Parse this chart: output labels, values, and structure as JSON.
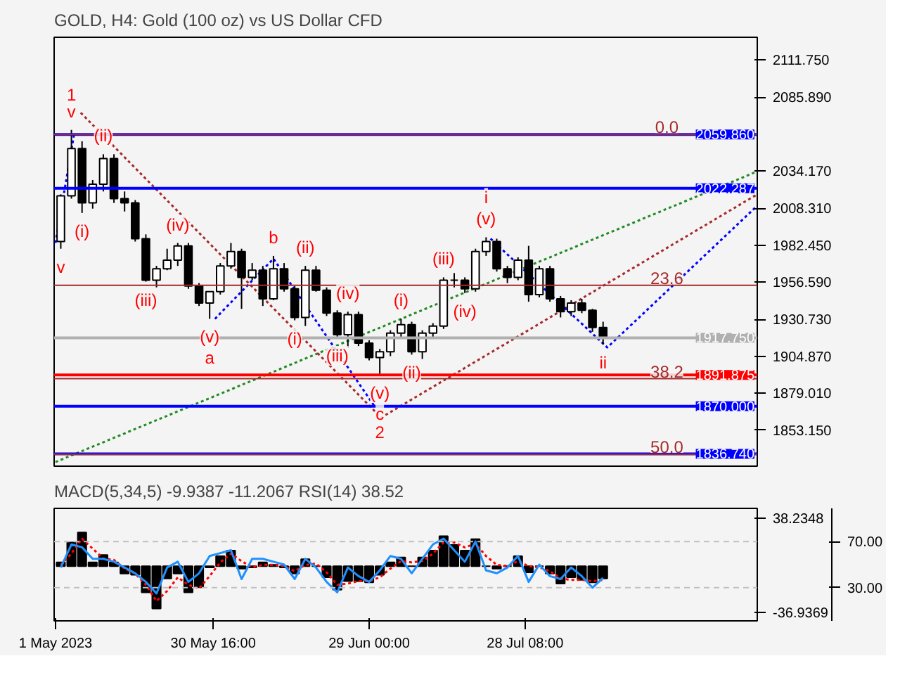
{
  "chart_data": [
    {
      "type": "candlestick",
      "title": "GOLD, H4:  Gold (100 oz) vs US Dollar CFD",
      "color": "#000000",
      "x": [
        "2023-05-02",
        "2023-05-04",
        "2023-05-06",
        "2023-05-08",
        "2023-05-10",
        "2023-05-12",
        "2023-05-14",
        "2023-05-16",
        "2023-05-18",
        "2023-05-20",
        "2023-05-22",
        "2023-05-24",
        "2023-05-26",
        "2023-05-28",
        "2023-05-30",
        "2023-06-01",
        "2023-06-03",
        "2023-06-05",
        "2023-06-07",
        "2023-06-09",
        "2023-06-11",
        "2023-06-13",
        "2023-06-15",
        "2023-06-17",
        "2023-06-19",
        "2023-06-21",
        "2023-06-23",
        "2023-06-25",
        "2023-06-27",
        "2023-06-29",
        "2023-07-01",
        "2023-07-03",
        "2023-07-05",
        "2023-07-07",
        "2023-07-09",
        "2023-07-11",
        "2023-07-13",
        "2023-07-15",
        "2023-07-17",
        "2023-07-19",
        "2023-07-21",
        "2023-07-23",
        "2023-07-25",
        "2023-07-27",
        "2023-07-29",
        "2023-07-31",
        "2023-08-02",
        "2023-08-04",
        "2023-08-06",
        "2023-08-08",
        "2023-08-10",
        "2023-08-12"
      ],
      "ohlc": [
        [
          1985,
          2018,
          1980,
          2017
        ],
        [
          2017,
          2063,
          2015,
          2050
        ],
        [
          2050,
          2055,
          2005,
          2012
        ],
        [
          2012,
          2028,
          2008,
          2025
        ],
        [
          2025,
          2046,
          2020,
          2043
        ],
        [
          2043,
          2046,
          2012,
          2015
        ],
        [
          2015,
          2020,
          2006,
          2012
        ],
        [
          2012,
          2014,
          1985,
          1987
        ],
        [
          1987,
          1990,
          1957,
          1958
        ],
        [
          1958,
          1968,
          1953,
          1966
        ],
        [
          1966,
          1980,
          1965,
          1972
        ],
        [
          1972,
          1984,
          1968,
          1982
        ],
        [
          1982,
          1984,
          1952,
          1954
        ],
        [
          1954,
          1956,
          1940,
          1942
        ],
        [
          1942,
          1950,
          1931,
          1950
        ],
        [
          1950,
          1970,
          1948,
          1968
        ],
        [
          1968,
          1984,
          1966,
          1978
        ],
        [
          1978,
          1980,
          1938,
          1960
        ],
        [
          1960,
          1970,
          1958,
          1965
        ],
        [
          1965,
          1968,
          1940,
          1945
        ],
        [
          1945,
          1975,
          1944,
          1966
        ],
        [
          1966,
          1970,
          1950,
          1952
        ],
        [
          1952,
          1954,
          1930,
          1932
        ],
        [
          1932,
          1968,
          1926,
          1965
        ],
        [
          1965,
          1968,
          1950,
          1951
        ],
        [
          1951,
          1953,
          1933,
          1935
        ],
        [
          1935,
          1937,
          1918,
          1920
        ],
        [
          1920,
          1936,
          1911,
          1934
        ],
        [
          1934,
          1936,
          1912,
          1914
        ],
        [
          1914,
          1916,
          1902,
          1904
        ],
        [
          1904,
          1910,
          1892,
          1908
        ],
        [
          1908,
          1923,
          1905,
          1921
        ],
        [
          1921,
          1931,
          1918,
          1927
        ],
        [
          1927,
          1929,
          1906,
          1908
        ],
        [
          1908,
          1923,
          1903,
          1921
        ],
        [
          1921,
          1928,
          1918,
          1926
        ],
        [
          1926,
          1960,
          1924,
          1958
        ],
        [
          1958,
          1963,
          1953,
          1958
        ],
        [
          1958,
          1960,
          1949,
          1952
        ],
        [
          1952,
          1980,
          1950,
          1978
        ],
        [
          1978,
          1988,
          1975,
          1985
        ],
        [
          1985,
          1987,
          1964,
          1966
        ],
        [
          1966,
          1968,
          1956,
          1960
        ],
        [
          1960,
          1974,
          1958,
          1972
        ],
        [
          1972,
          1982,
          1943,
          1948
        ],
        [
          1948,
          1968,
          1946,
          1966
        ],
        [
          1966,
          1968,
          1943,
          1945
        ],
        [
          1945,
          1947,
          1932,
          1936
        ],
        [
          1936,
          1944,
          1933,
          1942
        ],
        [
          1942,
          1945,
          1935,
          1937
        ],
        [
          1937,
          1938,
          1922,
          1925
        ],
        [
          1925,
          1929,
          1913,
          1917.75
        ]
      ],
      "series": [
        {
          "type": "line",
          "color": "#228b22",
          "line_style": "dotted",
          "x": [
            "2023-05-01",
            "2023-09-10"
          ],
          "values": [
            1831,
            2034
          ]
        },
        {
          "type": "line",
          "color": "#a52a2a",
          "line_style": "dotted",
          "x": [
            "2023-05-05T18:00",
            "2023-07-01T06:00",
            "2023-09-10"
          ],
          "values": [
            2075,
            1862,
            2018
          ]
        },
        {
          "type": "line",
          "color": "#0000ff",
          "line_style": "dotted",
          "x": [
            "2023-05-01",
            "2023-05-04T12:00"
          ],
          "values": [
            1984,
            2060
          ]
        },
        {
          "type": "line",
          "color": "#0000ff",
          "line_style": "dotted",
          "x": [
            "2023-05-31",
            "2023-06-11",
            "2023-06-30"
          ],
          "values": [
            1931,
            1973,
            1870
          ]
        },
        {
          "type": "line",
          "color": "#0000ff",
          "line_style": "dotted",
          "x": [
            "2023-07-21T20:00",
            "2023-08-12T19:00",
            "2023-09-10"
          ],
          "values": [
            1987,
            1911,
            2010
          ]
        }
      ],
      "xlim": [
        "2023-04-30T18:00",
        "2023-09-10"
      ],
      "ylim": [
        1828.1,
        2127.7
      ],
      "yticks": [
        {
          "value": 2111.75,
          "label": "2111.750"
        },
        {
          "value": 2085.89,
          "label": "2085.890"
        },
        {
          "value": 2034.17,
          "label": "2034.170"
        },
        {
          "value": 2008.31,
          "label": "2008.310"
        },
        {
          "value": 1982.45,
          "label": "1982.450"
        },
        {
          "value": 1956.59,
          "label": "1956.590"
        },
        {
          "value": 1930.73,
          "label": "1930.730"
        },
        {
          "value": 1904.87,
          "label": "1904.870"
        },
        {
          "value": 1879.01,
          "label": "1879.010"
        },
        {
          "value": 1853.15,
          "label": "1853.150"
        }
      ],
      "tick_labels": "y",
      "grid": false,
      "ref_lines": [
        {
          "axis": "y",
          "value": 2059.86,
          "label": "2059.860",
          "color": "#0000ff"
        },
        {
          "axis": "y",
          "value": 2022.287,
          "label": "2022.287",
          "color": "#0000ff"
        },
        {
          "axis": "y",
          "value": 1917.75,
          "label": "1917.750",
          "color": "#b0b0b0"
        },
        {
          "axis": "y",
          "value": 1891.875,
          "label": "1891.875",
          "color": "#ff0000"
        },
        {
          "axis": "y",
          "value": 1870.0,
          "label": "1870.000",
          "color": "#0000ff"
        },
        {
          "axis": "y",
          "value": 1836.74,
          "label": "1836.740",
          "color": "#0000ff"
        },
        {
          "axis": "y",
          "value": 2059.86,
          "color": "#a52a2a"
        },
        {
          "axis": "y",
          "value": 1954.4,
          "color": "#a52a2a"
        },
        {
          "axis": "y",
          "value": 1889.2,
          "color": "#a52a2a"
        },
        {
          "axis": "y",
          "value": 1836.5,
          "color": "#a52a2a"
        }
      ],
      "annotations": [
        {
          "text": "0.0",
          "x": "2023-08-24",
          "y": 2059.86
        },
        {
          "text": "23.6",
          "x": "2023-08-24",
          "y": 1954.4
        },
        {
          "text": "38.2",
          "x": "2023-08-24",
          "y": 1889.2
        },
        {
          "text": "50.0",
          "x": "2023-08-24",
          "y": 1836.5
        },
        {
          "text": "v",
          "x": "2023-05-04",
          "y": 2063
        },
        {
          "text": "1",
          "x": "2023-05-04",
          "y": 2063
        },
        {
          "text": "(ii)",
          "x": "2023-05-10",
          "y": 2046
        },
        {
          "text": "(i)",
          "x": "2023-05-06",
          "y": 2005
        },
        {
          "text": "(iv)",
          "x": "2023-05-24",
          "y": 1984
        },
        {
          "text": "(iii)",
          "x": "2023-05-18",
          "y": 1957
        },
        {
          "text": "(v)",
          "x": "2023-05-30",
          "y": 1931
        },
        {
          "text": "a",
          "x": "2023-05-30",
          "y": 1931
        },
        {
          "text": "b",
          "x": "2023-06-11",
          "y": 1975
        },
        {
          "text": "(ii)",
          "x": "2023-06-17",
          "y": 1968
        },
        {
          "text": "(iv)",
          "x": "2023-06-25",
          "y": 1936
        },
        {
          "text": "(i)",
          "x": "2023-06-15",
          "y": 1930
        },
        {
          "text": "(iii)",
          "x": "2023-06-23",
          "y": 1918
        },
        {
          "text": "(v)",
          "x": "2023-07-01",
          "y": 1892
        },
        {
          "text": "c",
          "x": "2023-07-01",
          "y": 1892
        },
        {
          "text": "2",
          "x": "2023-07-01",
          "y": 1892
        },
        {
          "text": "(i)",
          "x": "2023-07-05",
          "y": 1931
        },
        {
          "text": "(ii)",
          "x": "2023-07-07",
          "y": 1906
        },
        {
          "text": "(iii)",
          "x": "2023-07-13",
          "y": 1960
        },
        {
          "text": "(iv)",
          "x": "2023-07-17",
          "y": 1949
        },
        {
          "text": "(v)",
          "x": "2023-07-21",
          "y": 1988
        },
        {
          "text": "i",
          "x": "2023-07-21",
          "y": 1988
        },
        {
          "text": "ii",
          "x": "2023-08-12",
          "y": 1913
        },
        {
          "text": "v",
          "x": "2023-05-02",
          "y": 1980
        }
      ]
    },
    {
      "type": "bar",
      "title": "MACD(5,34,5) -9.9387 -11.2067 RSI(14) 38.52",
      "x": [
        "2023-05-02",
        "2023-05-04",
        "2023-05-06",
        "2023-05-08",
        "2023-05-10",
        "2023-05-12",
        "2023-05-14",
        "2023-05-16",
        "2023-05-18",
        "2023-05-20",
        "2023-05-22",
        "2023-05-24",
        "2023-05-26",
        "2023-05-28",
        "2023-05-30",
        "2023-06-01",
        "2023-06-03",
        "2023-06-05",
        "2023-06-07",
        "2023-06-09",
        "2023-06-11",
        "2023-06-13",
        "2023-06-15",
        "2023-06-17",
        "2023-06-19",
        "2023-06-21",
        "2023-06-23",
        "2023-06-25",
        "2023-06-27",
        "2023-06-29",
        "2023-07-01",
        "2023-07-03",
        "2023-07-05",
        "2023-07-07",
        "2023-07-09",
        "2023-07-11",
        "2023-07-13",
        "2023-07-15",
        "2023-07-17",
        "2023-07-19",
        "2023-07-21",
        "2023-07-23",
        "2023-07-25",
        "2023-07-27",
        "2023-07-29",
        "2023-07-31",
        "2023-08-02",
        "2023-08-04",
        "2023-08-06",
        "2023-08-08",
        "2023-08-10",
        "2023-08-12"
      ],
      "series": [
        {
          "type": "bar",
          "color": "#000000",
          "values": [
            3,
            19,
            27,
            3,
            9,
            3,
            -6,
            -7,
            -21,
            -34,
            -10,
            -6,
            -21,
            -17,
            -1,
            8,
            12.5,
            -2,
            -1,
            3,
            1,
            -1,
            -6,
            5.5,
            0,
            -9,
            -19,
            -12,
            -12,
            -13,
            -7,
            3,
            7,
            0,
            7,
            12.5,
            24,
            17,
            12.5,
            21.7,
            0,
            -2,
            0,
            8,
            -5,
            0,
            -6,
            -14,
            -9,
            -11,
            -13,
            -9.94
          ]
        },
        {
          "type": "line",
          "color": "#ff0000",
          "line_style": "dotted",
          "values": [
            1,
            10,
            22,
            14,
            6,
            5,
            -2,
            -6,
            -15,
            -28,
            -20,
            -9,
            -15,
            -18,
            -8,
            3,
            10,
            4,
            -1,
            1,
            1,
            0,
            -4,
            1,
            2,
            -5,
            -15,
            -14,
            -12,
            -12,
            -9,
            -2,
            4,
            3,
            4,
            10,
            19,
            19,
            15,
            18,
            8,
            1,
            0,
            4,
            0,
            -1,
            -4,
            -10,
            -11,
            -11,
            -12,
            -11.21
          ]
        },
        {
          "type": "line",
          "color": "#1e90ff",
          "axis": "y2",
          "values": [
            47.5,
            67.5,
            65,
            55,
            55,
            52.5,
            47.5,
            42.5,
            35,
            25,
            47.5,
            52.5,
            35,
            42.5,
            57.5,
            60,
            62.5,
            37.5,
            55,
            55,
            52.5,
            50,
            37.5,
            55,
            47.5,
            35,
            26,
            47.5,
            40,
            35,
            45,
            57.5,
            55,
            42.5,
            55,
            67.5,
            72.5,
            62.5,
            52.5,
            70,
            45,
            42.5,
            47.5,
            57.5,
            35,
            50,
            40,
            37.5,
            47.5,
            40,
            30,
            38.52
          ]
        }
      ],
      "xlim": [
        "2023-04-30T18:00",
        "2023-09-10"
      ],
      "xticks": [
        {
          "value": "2023-05-01",
          "label": "1 May 2023"
        },
        {
          "value": "2023-05-30T16:00",
          "label": "30 May 16:00"
        },
        {
          "value": "2023-06-29T00:00",
          "label": "29 Jun 00:00"
        },
        {
          "value": "2023-07-28T08:00",
          "label": "28 Jul 08:00"
        }
      ],
      "ylim": [
        -43.9,
        46.3
      ],
      "yticks": [
        {
          "value": 38.2348,
          "label": "38.2348"
        },
        {
          "value": -36.9369,
          "label": "-36.9369"
        }
      ],
      "y2lim": [
        1.25,
        98.75
      ],
      "y2ticks": [
        {
          "value": 70,
          "label": "70.00"
        },
        {
          "value": 30,
          "label": "30.00"
        }
      ],
      "grid": false,
      "ref_lines": [
        {
          "axis": "y2",
          "value": 70,
          "color": "#c0c0c0",
          "line_style": "dashed"
        },
        {
          "axis": "y2",
          "value": 30,
          "color": "#c0c0c0",
          "line_style": "dashed"
        }
      ]
    }
  ]
}
